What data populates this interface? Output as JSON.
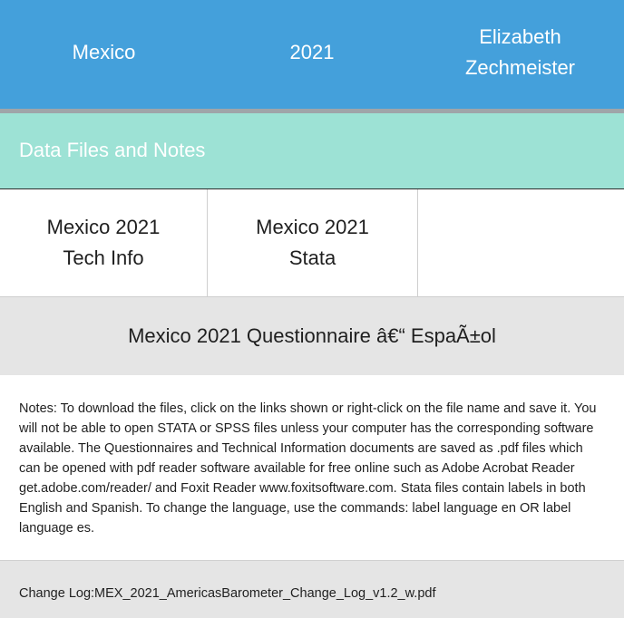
{
  "header": {
    "country": "Mexico",
    "year": "2021",
    "author_line1": "Elizabeth",
    "author_line2": "Zechmeister"
  },
  "section": {
    "title": "Data Files and Notes"
  },
  "files": [
    {
      "line1": "Mexico 2021",
      "line2": "Tech Info"
    },
    {
      "line1": "Mexico 2021",
      "line2": "Stata"
    }
  ],
  "questionnaire": {
    "label": "Mexico 2021 Questionnaire â€“ EspaÃ±ol"
  },
  "notes": {
    "text": "Notes: To download the files, click on the links shown or right-click on the file name and save it. You will not be able to open STATA or SPSS files unless your computer has the corresponding software available. The Questionnaires and Technical Information documents are saved as .pdf files which can be opened with pdf reader software available for free online such as Adobe Acrobat Reader get.adobe.com/reader/ and Foxit Reader www.foxitsoftware.com. Stata files contain labels in both English and Spanish. To change the language, use the commands: label language en OR label language es."
  },
  "changelog": {
    "text": "Change Log:MEX_2021_AmericasBarometer_Change_Log_v1.2_w.pdf"
  }
}
